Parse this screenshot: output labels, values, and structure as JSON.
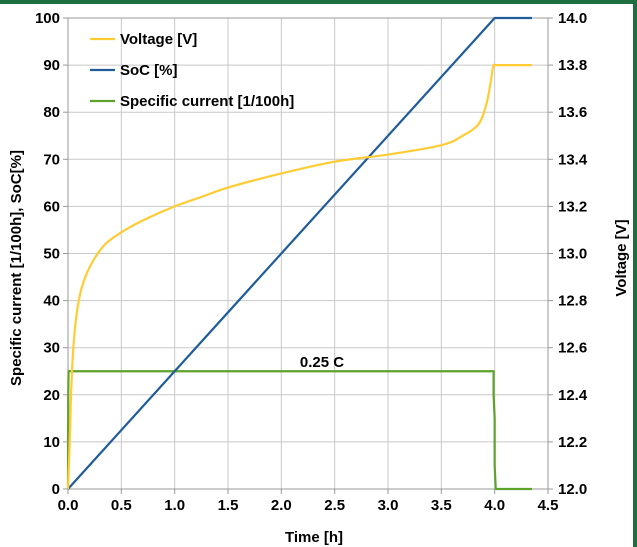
{
  "chart_data": {
    "type": "line",
    "xlabel": "Time [h]",
    "ylabel_left": "Specific current [1/100h], SoC[%]",
    "ylabel_right": "Voltage [V]",
    "xlim": [
      0,
      4.5
    ],
    "ylim_left": [
      0,
      100
    ],
    "ylim_right": [
      12.0,
      14.0
    ],
    "x_ticks": [
      "0.0",
      "0.5",
      "1.0",
      "1.5",
      "2.0",
      "2.5",
      "3.0",
      "3.5",
      "4.0",
      "4.5"
    ],
    "y_left_ticks": [
      "0",
      "10",
      "20",
      "30",
      "40",
      "50",
      "60",
      "70",
      "80",
      "90",
      "100"
    ],
    "y_right_ticks": [
      "12.0",
      "12.2",
      "12.4",
      "12.6",
      "12.8",
      "13.0",
      "13.2",
      "13.4",
      "13.6",
      "13.8",
      "14.0"
    ],
    "grid": true,
    "legend_position": "top-left",
    "annotation": "0.25 C",
    "series": [
      {
        "name": "Voltage [V]",
        "axis": "right",
        "color": "#ffcc33",
        "x": [
          0,
          0.01,
          0.02,
          0.03,
          0.05,
          0.08,
          0.12,
          0.18,
          0.25,
          0.35,
          0.5,
          0.7,
          1.0,
          1.25,
          1.5,
          2.0,
          2.5,
          3.0,
          3.5,
          3.7,
          3.85,
          3.92,
          3.96,
          3.98,
          3.99,
          4.0,
          4.1,
          4.2,
          4.35
        ],
        "values": [
          12.0,
          12.12,
          12.26,
          12.42,
          12.6,
          12.74,
          12.84,
          12.92,
          12.98,
          13.04,
          13.09,
          13.14,
          13.2,
          13.24,
          13.28,
          13.34,
          13.39,
          13.42,
          13.46,
          13.5,
          13.55,
          13.63,
          13.72,
          13.78,
          13.8,
          13.8,
          13.8,
          13.8,
          13.8
        ]
      },
      {
        "name": "SoC [%]",
        "axis": "left",
        "color": "#1f5c99",
        "x": [
          0,
          3.98,
          4.0,
          4.1,
          4.2,
          4.35
        ],
        "values": [
          0,
          99.5,
          100,
          100,
          100,
          100
        ]
      },
      {
        "name": "Specific current [1/100h]",
        "axis": "left",
        "color": "#5da22b",
        "x": [
          0,
          0.002,
          0.005,
          3.99,
          3.99,
          4.0,
          4.0,
          4.01,
          4.1,
          4.2,
          4.35
        ],
        "values": [
          0,
          20,
          25,
          25,
          20,
          15,
          5,
          0,
          0,
          0,
          0
        ]
      }
    ]
  }
}
